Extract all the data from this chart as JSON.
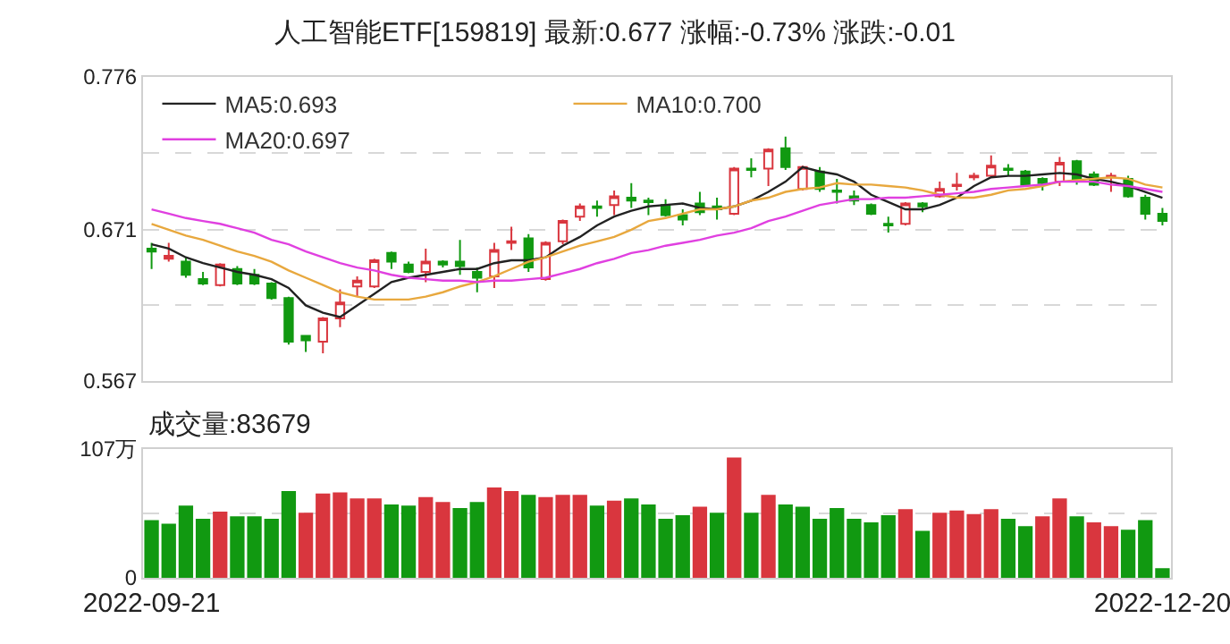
{
  "chart_data": [
    {
      "type": "candlestick",
      "title": "人工智能ETF[159819]  最新:0.677  涨幅:-0.73%  涨跌:-0.01",
      "categories": [
        "2022-09-21",
        null,
        null,
        null,
        null,
        null,
        null,
        null,
        null,
        null,
        null,
        null,
        null,
        null,
        null,
        null,
        null,
        null,
        null,
        null,
        null,
        null,
        null,
        null,
        null,
        null,
        null,
        null,
        null,
        null,
        null,
        null,
        null,
        null,
        null,
        null,
        null,
        null,
        null,
        null,
        null,
        null,
        null,
        null,
        null,
        null,
        null,
        null,
        null,
        null,
        null,
        null,
        null,
        null,
        null,
        null,
        null,
        null,
        null,
        "2022-12-20"
      ],
      "tick_labels": "y",
      "ylim": [
        0.567,
        0.776
      ],
      "yticks": [
        0.567,
        {
          "value": 0.619,
          "label": null
        },
        0.671,
        {
          "value": 0.7235,
          "label": null
        },
        0.776
      ],
      "grid": "y",
      "legend": "top",
      "series": [
        {
          "type": "line",
          "name": "MA5:0.693",
          "color": "#222222",
          "values": [
            0.661,
            0.658,
            0.652,
            0.648,
            0.645,
            0.642,
            0.64,
            0.637,
            0.631,
            0.619,
            0.614,
            0.611,
            0.619,
            0.627,
            0.635,
            0.638,
            0.64,
            0.642,
            0.644,
            0.644,
            0.648,
            0.65,
            0.65,
            0.652,
            0.66,
            0.666,
            0.674,
            0.68,
            0.684,
            0.687,
            0.688,
            0.689,
            0.686,
            0.685,
            0.687,
            0.691,
            0.697,
            0.704,
            0.714,
            0.711,
            0.709,
            0.704,
            0.695,
            0.69,
            0.685,
            0.685,
            0.688,
            0.693,
            0.701,
            0.707,
            0.708,
            0.708,
            0.709,
            0.71,
            0.709,
            0.706,
            0.704,
            0.701,
            0.697,
            0.693
          ]
        },
        {
          "type": "line",
          "name": "MA10:0.700",
          "color": "#e8a83e",
          "values": [
            0.675,
            0.671,
            0.667,
            0.664,
            0.66,
            0.656,
            0.653,
            0.649,
            0.643,
            0.638,
            0.633,
            0.628,
            0.625,
            0.623,
            0.623,
            0.623,
            0.625,
            0.628,
            0.632,
            0.635,
            0.639,
            0.644,
            0.649,
            0.652,
            0.656,
            0.66,
            0.663,
            0.666,
            0.671,
            0.677,
            0.679,
            0.682,
            0.685,
            0.685,
            0.687,
            0.691,
            0.693,
            0.697,
            0.699,
            0.7,
            0.703,
            0.702,
            0.702,
            0.701,
            0.7,
            0.698,
            0.695,
            0.693,
            0.693,
            0.695,
            0.698,
            0.699,
            0.701,
            0.704,
            0.705,
            0.706,
            0.707,
            0.706,
            0.702,
            0.7
          ]
        },
        {
          "type": "line",
          "name": "MA20:0.697",
          "color": "#e040e0",
          "values": [
            0.685,
            0.682,
            0.679,
            0.677,
            0.675,
            0.672,
            0.669,
            0.664,
            0.661,
            0.656,
            0.652,
            0.648,
            0.645,
            0.643,
            0.64,
            0.638,
            0.637,
            0.636,
            0.636,
            0.635,
            0.636,
            0.636,
            0.637,
            0.638,
            0.641,
            0.644,
            0.648,
            0.651,
            0.655,
            0.657,
            0.66,
            0.662,
            0.664,
            0.667,
            0.669,
            0.672,
            0.677,
            0.68,
            0.684,
            0.688,
            0.69,
            0.692,
            0.692,
            0.693,
            0.693,
            0.694,
            0.695,
            0.696,
            0.697,
            0.699,
            0.7,
            0.701,
            0.702,
            0.704,
            0.704,
            0.704,
            0.702,
            0.701,
            0.699,
            0.697
          ]
        },
        {
          "type": "candlestick",
          "ohlc": [
            [
              0.658,
              0.662,
              0.644,
              0.656
            ],
            [
              0.651,
              0.662,
              0.649,
              0.653
            ],
            [
              0.649,
              0.652,
              0.638,
              0.64
            ],
            [
              0.637,
              0.642,
              0.633,
              0.634
            ],
            [
              0.633,
              0.648,
              0.632,
              0.647
            ],
            [
              0.644,
              0.646,
              0.633,
              0.634
            ],
            [
              0.64,
              0.644,
              0.633,
              0.634
            ],
            [
              0.634,
              0.635,
              0.623,
              0.624
            ],
            [
              0.624,
              0.625,
              0.592,
              0.594
            ],
            [
              0.598,
              0.598,
              0.587,
              0.595
            ],
            [
              0.594,
              0.611,
              0.586,
              0.61
            ],
            [
              0.61,
              0.63,
              0.604,
              0.621
            ],
            [
              0.632,
              0.639,
              0.625,
              0.636
            ],
            [
              0.632,
              0.651,
              0.631,
              0.65
            ],
            [
              0.655,
              0.656,
              0.644,
              0.649
            ],
            [
              0.647,
              0.649,
              0.641,
              0.642
            ],
            [
              0.642,
              0.658,
              0.635,
              0.649
            ],
            [
              0.649,
              0.65,
              0.645,
              0.647
            ],
            [
              0.649,
              0.664,
              0.64,
              0.646
            ],
            [
              0.642,
              0.645,
              0.628,
              0.638
            ],
            [
              0.639,
              0.662,
              0.631,
              0.657
            ],
            [
              0.662,
              0.673,
              0.657,
              0.663
            ],
            [
              0.665,
              0.668,
              0.642,
              0.645
            ],
            [
              0.637,
              0.663,
              0.636,
              0.662
            ],
            [
              0.663,
              0.678,
              0.661,
              0.677
            ],
            [
              0.68,
              0.689,
              0.677,
              0.687
            ],
            [
              0.687,
              0.691,
              0.68,
              0.686
            ],
            [
              0.688,
              0.698,
              0.681,
              0.694
            ],
            [
              0.693,
              0.703,
              0.686,
              0.691
            ],
            [
              0.691,
              0.693,
              0.681,
              0.69
            ],
            [
              0.688,
              0.692,
              0.68,
              0.681
            ],
            [
              0.681,
              0.685,
              0.674,
              0.678
            ],
            [
              0.689,
              0.697,
              0.681,
              0.683
            ],
            [
              0.687,
              0.693,
              0.678,
              0.685
            ],
            [
              0.682,
              0.714,
              0.681,
              0.713
            ],
            [
              0.713,
              0.72,
              0.707,
              0.712
            ],
            [
              0.713,
              0.727,
              0.701,
              0.726
            ],
            [
              0.727,
              0.735,
              0.712,
              0.714
            ],
            [
              0.699,
              0.715,
              0.698,
              0.714
            ],
            [
              0.711,
              0.714,
              0.697,
              0.699
            ],
            [
              0.698,
              0.706,
              0.689,
              0.697
            ],
            [
              0.694,
              0.698,
              0.688,
              0.691
            ],
            [
              0.688,
              0.689,
              0.681,
              0.682
            ],
            [
              0.675,
              0.68,
              0.669,
              0.674
            ],
            [
              0.675,
              0.69,
              0.674,
              0.689
            ],
            [
              0.689,
              0.69,
              0.683,
              0.687
            ],
            [
              0.694,
              0.704,
              0.693,
              0.699
            ],
            [
              0.701,
              0.71,
              0.698,
              0.702
            ],
            [
              0.707,
              0.71,
              0.705,
              0.708
            ],
            [
              0.708,
              0.722,
              0.708,
              0.715
            ],
            [
              0.713,
              0.716,
              0.708,
              0.712
            ],
            [
              0.711,
              0.712,
              0.701,
              0.702
            ],
            [
              0.706,
              0.707,
              0.698,
              0.703
            ],
            [
              0.704,
              0.721,
              0.701,
              0.717
            ],
            [
              0.718,
              0.719,
              0.702,
              0.706
            ],
            [
              0.709,
              0.711,
              0.701,
              0.702
            ],
            [
              0.707,
              0.71,
              0.697,
              0.708
            ],
            [
              0.706,
              0.708,
              0.693,
              0.694
            ],
            [
              0.693,
              0.695,
              0.678,
              0.682
            ],
            [
              0.682,
              0.686,
              0.674,
              0.677
            ]
          ],
          "colors": [
            "#119911",
            "#d9363e",
            "#119911",
            "#119911",
            "#d9363e",
            "#119911",
            "#119911",
            "#119911",
            "#119911",
            "#119911",
            "#d9363e",
            "#d9363e",
            "#d9363e",
            "#d9363e",
            "#119911",
            "#119911",
            "#d9363e",
            "#119911",
            "#119911",
            "#119911",
            "#d9363e",
            "#d9363e",
            "#119911",
            "#d9363e",
            "#d9363e",
            "#d9363e",
            "#119911",
            "#d9363e",
            "#119911",
            "#119911",
            "#119911",
            "#119911",
            "#119911",
            "#119911",
            "#d9363e",
            "#119911",
            "#d9363e",
            "#119911",
            "#d9363e",
            "#119911",
            "#119911",
            "#119911",
            "#119911",
            "#119911",
            "#d9363e",
            "#119911",
            "#d9363e",
            "#d9363e",
            "#d9363e",
            "#d9363e",
            "#119911",
            "#119911",
            "#119911",
            "#d9363e",
            "#119911",
            "#119911",
            "#d9363e",
            "#119911",
            "#119911",
            "#119911"
          ]
        }
      ]
    },
    {
      "type": "bar",
      "title": "成交量:83679",
      "categories": [
        "2022-09-21",
        null,
        null,
        null,
        null,
        null,
        null,
        null,
        null,
        null,
        null,
        null,
        null,
        null,
        null,
        null,
        null,
        null,
        null,
        null,
        null,
        null,
        null,
        null,
        null,
        null,
        null,
        null,
        null,
        null,
        null,
        null,
        null,
        null,
        null,
        null,
        null,
        null,
        null,
        null,
        null,
        null,
        null,
        null,
        null,
        null,
        null,
        null,
        null,
        null,
        null,
        null,
        null,
        null,
        null,
        null,
        null,
        null,
        null,
        "2022-12-20"
      ],
      "ylim": [
        0,
        107
      ],
      "yticks": [
        0,
        {
          "value": 53.5,
          "label": null
        },
        {
          "value": 107,
          "label": "107万"
        }
      ],
      "grid": "y",
      "values": [
        48,
        45,
        60,
        49,
        55,
        51,
        51,
        49,
        72,
        54,
        70,
        71,
        66,
        66,
        61,
        60,
        67,
        63,
        58,
        63,
        75,
        72,
        69,
        67,
        69,
        69,
        60,
        64,
        66,
        61,
        49,
        52,
        59,
        54,
        100,
        54,
        69,
        61,
        59,
        49,
        58,
        49,
        46,
        52,
        57,
        39,
        54,
        56,
        53,
        57,
        49,
        43,
        51,
        66,
        51,
        46,
        43,
        40,
        48,
        8
      ],
      "colors": [
        "#119911",
        "#119911",
        "#119911",
        "#119911",
        "#d9363e",
        "#119911",
        "#119911",
        "#119911",
        "#119911",
        "#d9363e",
        "#d9363e",
        "#d9363e",
        "#d9363e",
        "#d9363e",
        "#119911",
        "#119911",
        "#d9363e",
        "#d9363e",
        "#119911",
        "#119911",
        "#d9363e",
        "#d9363e",
        "#119911",
        "#d9363e",
        "#d9363e",
        "#d9363e",
        "#119911",
        "#d9363e",
        "#119911",
        "#119911",
        "#119911",
        "#119911",
        "#d9363e",
        "#119911",
        "#d9363e",
        "#119911",
        "#d9363e",
        "#119911",
        "#119911",
        "#119911",
        "#119911",
        "#119911",
        "#119911",
        "#119911",
        "#d9363e",
        "#119911",
        "#d9363e",
        "#d9363e",
        "#d9363e",
        "#d9363e",
        "#119911",
        "#119911",
        "#d9363e",
        "#d9363e",
        "#119911",
        "#d9363e",
        "#d9363e",
        "#119911",
        "#119911",
        "#119911"
      ]
    }
  ]
}
